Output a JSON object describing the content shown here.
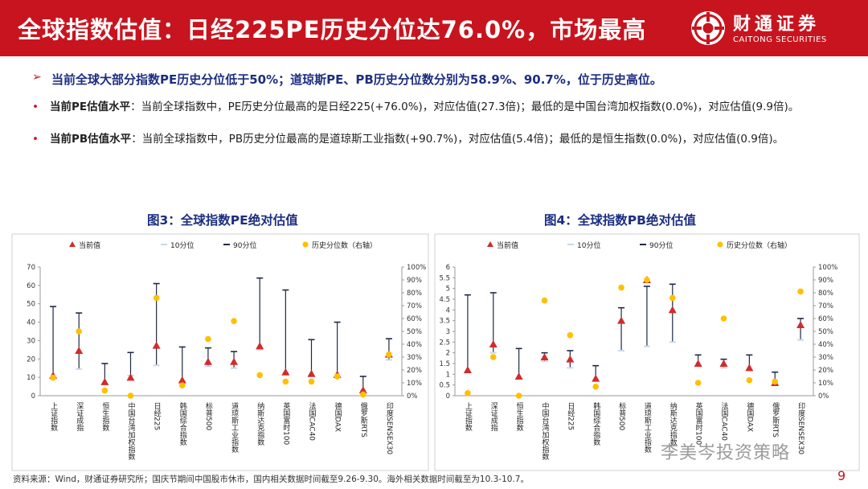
{
  "header": {
    "title": "全球指数估值：日经225PE历史分位达76.0%，市场最高",
    "brand_cn": "财通证券",
    "brand_en": "CAITONG SECURITIES"
  },
  "points": {
    "highlight_mark": "➢",
    "highlight": "当前全球大部分指数PE历史分位低于50%；道琼斯PE、PB历史分位数分别为58.9%、90.7%，位于历史高位。",
    "bullet_mark": "•",
    "pe_label": "当前PE估值水平",
    "pe_text": "：当前全球指数中，PE历史分位最高的是日经225(+76.0%)，对应估值(27.3倍)；最低的是中国台湾加权指数(0.0%)，对应估值(9.9倍)。",
    "pb_label": "当前PB估值水平",
    "pb_text": "：当前全球指数中，PB历史分位最高的是道琼斯工业指数(+90.7%)，对应估值(5.4倍)；最低的是恒生指数(0.0%)，对应估值(0.9倍)。"
  },
  "charts": {
    "fig3_title": "图3：全球指数PE绝对估值",
    "fig4_title": "图4：全球指数PB绝对估值"
  },
  "footer": {
    "source": "资料来源：Wind，财通证券研究所；国庆节期间中国股市休市，国内相关数据时间截至9.26-9.30。海外相关数据时间截至为10.3-10.7。",
    "watermark": "李美岑投资策略",
    "page": "9"
  },
  "colors": {
    "brand_red": "#c8141e",
    "title_blue": "#1c2e80",
    "marker_red": "#d22b2b",
    "marker_gold": "#ffc000",
    "bar_line": "#1f2a44",
    "p10_color": "#c9d9ee"
  },
  "chart_data": [
    {
      "type": "scatter",
      "title": "图3：全球指数PE绝对估值",
      "legend": [
        "当前值",
        "10分位",
        "90分位",
        "历史分位数（右轴）"
      ],
      "legend_placement": "top",
      "categories": [
        "上证指数",
        "深证成指",
        "恒生指数",
        "中国台湾加权指数",
        "日经225",
        "韩国综合指数",
        "标普500",
        "道琼斯工业指数",
        "纳斯达克指数",
        "英国富时100",
        "法国CAC40",
        "德国DAX",
        "俄罗斯RTS",
        "印度SENSEX30"
      ],
      "ylim": [
        0,
        70
      ],
      "yticks": [
        "0",
        "10",
        "20",
        "30",
        "40",
        "50",
        "60",
        "70"
      ],
      "y2lim": [
        0,
        100
      ],
      "y2ticks": [
        "0%",
        "10%",
        "20%",
        "30%",
        "40%",
        "50%",
        "60%",
        "70%",
        "80%",
        "90%",
        "100%"
      ],
      "series": [
        {
          "name": "当前值",
          "values": [
            11.0,
            24.5,
            7.5,
            9.9,
            27.3,
            8.5,
            18.5,
            18.5,
            27.0,
            12.8,
            12.0,
            11.5,
            3.0,
            22.5
          ]
        },
        {
          "name": "10分位",
          "values": [
            9.5,
            14.5,
            6.5,
            11.0,
            16.5,
            8.0,
            16.0,
            15.0,
            25.0,
            12.5,
            10.5,
            10.0,
            2.8,
            19.5
          ]
        },
        {
          "name": "90分位",
          "values": [
            48.5,
            45.0,
            17.5,
            23.5,
            61.0,
            26.5,
            26.0,
            24.0,
            64.0,
            57.5,
            30.5,
            40.0,
            10.5,
            31.0
          ]
        },
        {
          "name": "历史分位数（右轴）",
          "values": [
            14,
            50,
            4,
            0,
            76,
            8,
            44,
            58,
            16,
            11,
            11,
            15,
            1,
            32
          ]
        }
      ]
    },
    {
      "type": "scatter",
      "title": "图4：全球指数PB绝对估值",
      "legend": [
        "当前值",
        "10分位",
        "90分位",
        "历史分位数（右轴）"
      ],
      "legend_placement": "top",
      "categories": [
        "上证指数",
        "深证成指",
        "恒生指数",
        "中国台湾加权指数",
        "日经225",
        "韩国综合指数",
        "标普500",
        "道琼斯工业指数",
        "纳斯达克指数",
        "英国富时100",
        "法国CAC40",
        "德国DAX",
        "俄罗斯RTS",
        "印度SENSEX30"
      ],
      "ylim": [
        0,
        6
      ],
      "yticks": [
        "0",
        "0.5",
        "1",
        "1.5",
        "2",
        "2.5",
        "3",
        "3.5",
        "4",
        "4.5",
        "5",
        "5.5",
        "6"
      ],
      "y2lim": [
        0,
        100
      ],
      "y2ticks": [
        "0%",
        "10%",
        "20%",
        "30%",
        "40%",
        "50%",
        "60%",
        "70%",
        "80%",
        "90%",
        "100%"
      ],
      "series": [
        {
          "name": "当前值",
          "values": [
            1.2,
            2.4,
            0.9,
            1.8,
            1.7,
            0.8,
            3.5,
            5.4,
            4.0,
            1.5,
            1.5,
            1.3,
            0.6,
            3.3
          ]
        },
        {
          "name": "10分位",
          "values": [
            1.1,
            2.0,
            0.8,
            1.6,
            1.3,
            0.7,
            2.1,
            2.3,
            2.5,
            1.4,
            1.3,
            1.2,
            0.5,
            2.6
          ]
        },
        {
          "name": "90分位",
          "values": [
            4.7,
            4.8,
            2.2,
            2.0,
            2.1,
            1.4,
            4.1,
            5.1,
            5.2,
            1.9,
            1.7,
            1.9,
            1.1,
            3.6
          ]
        },
        {
          "name": "历史分位数（右轴）",
          "values": [
            2,
            30,
            0,
            74,
            47,
            7,
            84,
            90,
            76,
            10,
            60,
            12,
            11,
            81
          ]
        }
      ]
    }
  ]
}
